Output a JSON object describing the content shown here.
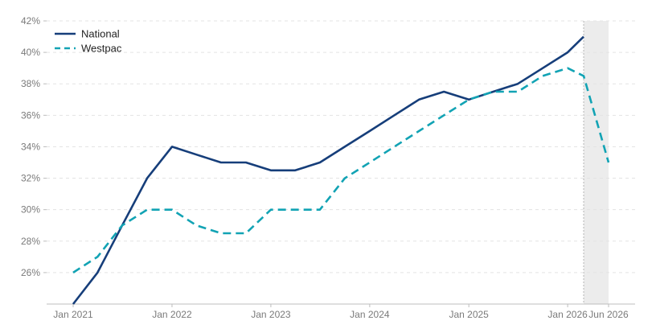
{
  "chart_data": {
    "type": "line",
    "x_ticks": [
      "Jan 2021",
      "Jan 2022",
      "Jan 2023",
      "Jan 2024",
      "Jan 2025",
      "Jan 2026",
      "Jun 2026"
    ],
    "y_ticks": [
      "26%",
      "28%",
      "30%",
      "32%",
      "34%",
      "36%",
      "38%",
      "40%",
      "42%"
    ],
    "ylim": [
      24,
      42
    ],
    "xlim": [
      "2020-10-01",
      "2026-09-01"
    ],
    "grid": true,
    "legend_position": "top-left",
    "highlight_period": [
      "2026-03-01",
      "2026-06-01"
    ],
    "series": [
      {
        "name": "National",
        "color": "#163e7a",
        "style": "solid",
        "points": [
          [
            "2021-01-01",
            24.0
          ],
          [
            "2021-04-01",
            26.0
          ],
          [
            "2021-07-01",
            29.0
          ],
          [
            "2021-10-01",
            32.0
          ],
          [
            "2022-01-01",
            34.0
          ],
          [
            "2022-04-01",
            33.5
          ],
          [
            "2022-07-01",
            33.0
          ],
          [
            "2022-10-01",
            33.0
          ],
          [
            "2023-01-01",
            32.5
          ],
          [
            "2023-04-01",
            32.5
          ],
          [
            "2023-07-01",
            33.0
          ],
          [
            "2023-10-01",
            34.0
          ],
          [
            "2024-01-01",
            35.0
          ],
          [
            "2024-04-01",
            36.0
          ],
          [
            "2024-07-01",
            37.0
          ],
          [
            "2024-10-01",
            37.5
          ],
          [
            "2025-01-01",
            37.0
          ],
          [
            "2025-04-01",
            37.5
          ],
          [
            "2025-07-01",
            38.0
          ],
          [
            "2025-10-01",
            39.0
          ],
          [
            "2026-01-01",
            40.0
          ],
          [
            "2026-03-01",
            41.0
          ]
        ]
      },
      {
        "name": "Westpac",
        "color": "#12a3b4",
        "style": "dashed",
        "points": [
          [
            "2021-01-01",
            26.0
          ],
          [
            "2021-04-01",
            27.0
          ],
          [
            "2021-07-01",
            29.0
          ],
          [
            "2021-10-01",
            30.0
          ],
          [
            "2022-01-01",
            30.0
          ],
          [
            "2022-04-01",
            29.0
          ],
          [
            "2022-07-01",
            28.5
          ],
          [
            "2022-10-01",
            28.5
          ],
          [
            "2023-01-01",
            30.0
          ],
          [
            "2023-04-01",
            30.0
          ],
          [
            "2023-07-01",
            30.0
          ],
          [
            "2023-10-01",
            32.0
          ],
          [
            "2024-01-01",
            33.0
          ],
          [
            "2024-04-01",
            34.0
          ],
          [
            "2024-07-01",
            35.0
          ],
          [
            "2024-10-01",
            36.0
          ],
          [
            "2025-01-01",
            37.0
          ],
          [
            "2025-04-01",
            37.5
          ],
          [
            "2025-07-01",
            37.5
          ],
          [
            "2025-10-01",
            38.5
          ],
          [
            "2026-01-01",
            39.0
          ],
          [
            "2026-03-01",
            38.5
          ],
          [
            "2026-06-01",
            33.0
          ]
        ]
      }
    ]
  }
}
